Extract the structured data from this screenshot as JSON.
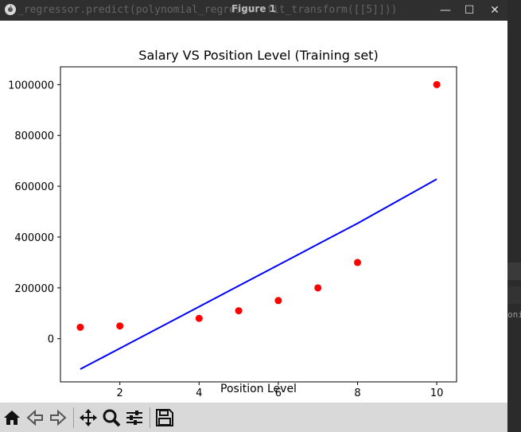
{
  "window": {
    "title": "Figure 1",
    "background_code": "_regressor.predict(polynomial_regressor.fit_transform([[5]]))",
    "minimize_glyph": "—",
    "maximize_glyph": "☐",
    "close_glyph": "✕",
    "right_fragment": "oni"
  },
  "colors": {
    "line": "#0000ff",
    "points": "#ff0000",
    "figure_bg": "#ffffff",
    "toolbar_bg": "#d9d9d9"
  },
  "toolbar": {
    "icons": [
      "home-icon",
      "back-arrow-icon",
      "forward-arrow-icon",
      "pan-move-icon",
      "zoom-magnifier-icon",
      "configure-subplots-icon",
      "save-floppy-icon"
    ]
  },
  "chart_data": {
    "type": "scatter",
    "title": "Salary VS Position Level (Training set)",
    "xlabel": "Position Level",
    "ylabel": "",
    "xlim": [
      0.5,
      10.5
    ],
    "ylim": [
      -170000,
      1070000
    ],
    "xticks": [
      2,
      4,
      6,
      8,
      10
    ],
    "yticks": [
      0,
      200000,
      400000,
      600000,
      800000,
      1000000
    ],
    "xtick_labels": [
      "2",
      "4",
      "6",
      "8",
      "10"
    ],
    "ytick_labels": [
      "0",
      "200000",
      "400000",
      "600000",
      "800000",
      "1000000"
    ],
    "grid": false,
    "series": [
      {
        "kind": "scatter",
        "color": "#ff0000",
        "x": [
          1,
          2,
          4,
          5,
          6,
          7,
          8,
          10
        ],
        "y": [
          45000,
          50000,
          80000,
          110000,
          150000,
          200000,
          300000,
          1000000
        ]
      },
      {
        "kind": "line",
        "color": "#0000ff",
        "x": [
          1,
          2,
          4,
          5,
          6,
          7,
          8,
          10
        ],
        "y": [
          -120000,
          -38000,
          126000,
          208000,
          290000,
          372000,
          454000,
          628000
        ]
      }
    ]
  }
}
